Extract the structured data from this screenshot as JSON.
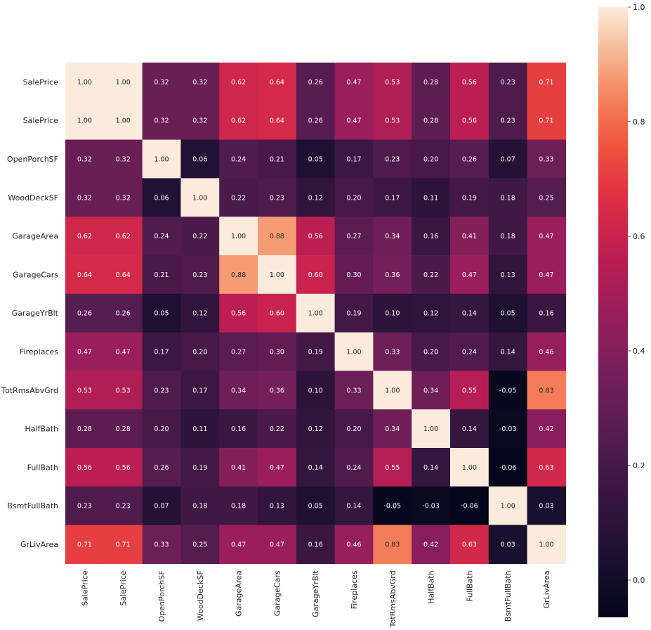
{
  "chart_data": {
    "type": "heatmap",
    "title": "",
    "labels": [
      "SalePrice",
      "SalePrice",
      "OpenPorchSF",
      "WoodDeckSF",
      "GarageArea",
      "GarageCars",
      "GarageYrBlt",
      "Fireplaces",
      "TotRmsAbvGrd",
      "HalfBath",
      "FullBath",
      "BsmtFullBath",
      "GrLivArea"
    ],
    "values": [
      [
        1.0,
        1.0,
        0.32,
        0.32,
        0.62,
        0.64,
        0.26,
        0.47,
        0.53,
        0.28,
        0.56,
        0.23,
        0.71
      ],
      [
        1.0,
        1.0,
        0.32,
        0.32,
        0.62,
        0.64,
        0.26,
        0.47,
        0.53,
        0.28,
        0.56,
        0.23,
        0.71
      ],
      [
        0.32,
        0.32,
        1.0,
        0.06,
        0.24,
        0.21,
        0.05,
        0.17,
        0.23,
        0.2,
        0.26,
        0.07,
        0.33
      ],
      [
        0.32,
        0.32,
        0.06,
        1.0,
        0.22,
        0.23,
        0.12,
        0.2,
        0.17,
        0.11,
        0.19,
        0.18,
        0.25
      ],
      [
        0.62,
        0.62,
        0.24,
        0.22,
        1.0,
        0.88,
        0.56,
        0.27,
        0.34,
        0.16,
        0.41,
        0.18,
        0.47
      ],
      [
        0.64,
        0.64,
        0.21,
        0.23,
        0.88,
        1.0,
        0.6,
        0.3,
        0.36,
        0.22,
        0.47,
        0.13,
        0.47
      ],
      [
        0.26,
        0.26,
        0.05,
        0.12,
        0.56,
        0.6,
        1.0,
        0.19,
        0.1,
        0.12,
        0.14,
        0.05,
        0.16
      ],
      [
        0.47,
        0.47,
        0.17,
        0.2,
        0.27,
        0.3,
        0.19,
        1.0,
        0.33,
        0.2,
        0.24,
        0.14,
        0.46
      ],
      [
        0.53,
        0.53,
        0.23,
        0.17,
        0.34,
        0.36,
        0.1,
        0.33,
        1.0,
        0.34,
        0.55,
        -0.05,
        0.83
      ],
      [
        0.28,
        0.28,
        0.2,
        0.11,
        0.16,
        0.22,
        0.12,
        0.2,
        0.34,
        1.0,
        0.14,
        -0.03,
        0.42
      ],
      [
        0.56,
        0.56,
        0.26,
        0.19,
        0.41,
        0.47,
        0.14,
        0.24,
        0.55,
        0.14,
        1.0,
        -0.06,
        0.63
      ],
      [
        0.23,
        0.23,
        0.07,
        0.18,
        0.18,
        0.13,
        0.05,
        0.14,
        -0.05,
        -0.03,
        -0.06,
        1.0,
        0.03
      ],
      [
        0.71,
        0.71,
        0.33,
        0.25,
        0.47,
        0.47,
        0.16,
        0.46,
        0.83,
        0.42,
        0.63,
        0.03,
        1.0
      ]
    ],
    "colorbar": {
      "vmin": -0.065,
      "vmax": 1.0,
      "ticks": [
        0.0,
        0.2,
        0.4,
        0.6,
        0.8,
        1.0
      ],
      "tick_labels": [
        "0.0",
        "0.2",
        "0.4",
        "0.6",
        "0.8",
        "1.0"
      ]
    },
    "colormap": "rocket",
    "annot_format": ".2f"
  }
}
